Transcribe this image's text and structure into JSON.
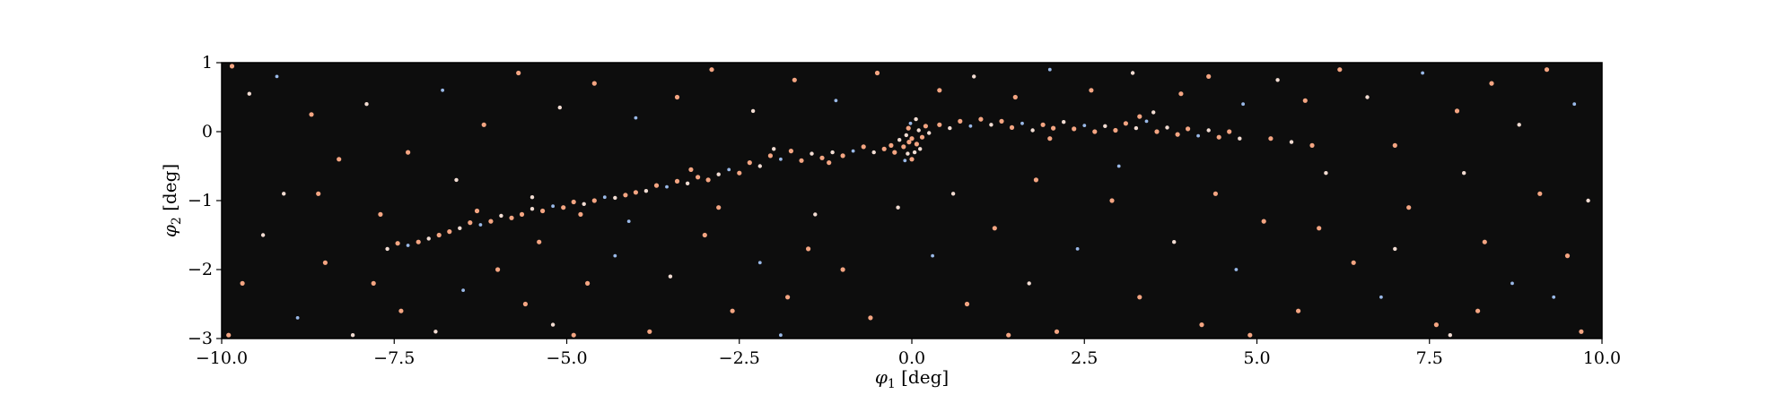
{
  "chart_data": {
    "type": "scatter",
    "title": "",
    "xlabel": "φ1 [deg]",
    "ylabel": "φ2 [deg]",
    "xlim": [
      -10,
      10
    ],
    "ylim": [
      -3,
      1
    ],
    "xticks": [
      -10.0,
      -7.5,
      -5.0,
      -2.5,
      0.0,
      2.5,
      5.0,
      7.5,
      10.0
    ],
    "xtick_labels": [
      "−10.0",
      "−7.5",
      "−5.0",
      "−2.5",
      "0.0",
      "2.5",
      "5.0",
      "7.5",
      "10.0"
    ],
    "yticks": [
      1,
      0,
      -1,
      -2,
      -3
    ],
    "ytick_labels": [
      "1",
      "0",
      "−1",
      "−2",
      "−3"
    ],
    "grid": false,
    "legend": false,
    "colors": {
      "background": "#0d0d0d",
      "warm": "#f4a582",
      "pale": "#f2dcd2",
      "cool": "#9ab9e8"
    },
    "stream_track": [
      {
        "phi1": -7.0,
        "phi2": -1.45
      },
      {
        "phi1": -6.0,
        "phi2": -1.25
      },
      {
        "phi1": -5.0,
        "phi2": -1.05
      },
      {
        "phi1": -4.0,
        "phi2": -0.85
      },
      {
        "phi1": -3.0,
        "phi2": -0.65
      },
      {
        "phi1": -2.0,
        "phi2": -0.4
      },
      {
        "phi1": -1.0,
        "phi2": -0.3
      },
      {
        "phi1": 0.0,
        "phi2": -0.05
      },
      {
        "phi1": 1.0,
        "phi2": 0.1
      },
      {
        "phi1": 2.0,
        "phi2": 0.08
      },
      {
        "phi1": 3.0,
        "phi2": 0.05
      },
      {
        "phi1": 4.0,
        "phi2": 0.02
      },
      {
        "phi1": 5.0,
        "phi2": -0.05
      },
      {
        "phi1": 5.8,
        "phi2": -0.15
      }
    ],
    "progenitor": {
      "phi1": 0.0,
      "phi2": -0.1
    },
    "points": [
      {
        "phi1": 0.0,
        "phi2": -0.1,
        "c": "warm"
      },
      {
        "phi1": -0.08,
        "phi2": -0.05,
        "c": "pale"
      },
      {
        "phi1": 0.07,
        "phi2": -0.18,
        "c": "warm"
      },
      {
        "phi1": -0.05,
        "phi2": 0.05,
        "c": "warm"
      },
      {
        "phi1": 0.1,
        "phi2": 0.02,
        "c": "pale"
      },
      {
        "phi1": -0.12,
        "phi2": -0.22,
        "c": "warm"
      },
      {
        "phi1": 0.04,
        "phi2": -0.3,
        "c": "pale"
      },
      {
        "phi1": -0.02,
        "phi2": 0.12,
        "c": "cool"
      },
      {
        "phi1": 0.15,
        "phi2": -0.08,
        "c": "warm"
      },
      {
        "phi1": -0.18,
        "phi2": -0.12,
        "c": "pale"
      },
      {
        "phi1": 0.0,
        "phi2": -0.4,
        "c": "warm"
      },
      {
        "phi1": -0.06,
        "phi2": -0.32,
        "c": "pale"
      },
      {
        "phi1": 0.2,
        "phi2": 0.08,
        "c": "warm"
      },
      {
        "phi1": -0.25,
        "phi2": -0.3,
        "c": "warm"
      },
      {
        "phi1": 0.06,
        "phi2": 0.18,
        "c": "pale"
      },
      {
        "phi1": -0.1,
        "phi2": -0.42,
        "c": "cool"
      },
      {
        "phi1": 0.12,
        "phi2": -0.25,
        "c": "pale"
      },
      {
        "phi1": -0.3,
        "phi2": -0.2,
        "c": "warm"
      },
      {
        "phi1": 0.25,
        "phi2": -0.02,
        "c": "pale"
      },
      {
        "phi1": -0.04,
        "phi2": -0.15,
        "c": "warm"
      },
      {
        "phi1": -0.4,
        "phi2": -0.25,
        "c": "warm"
      },
      {
        "phi1": -0.55,
        "phi2": -0.3,
        "c": "pale"
      },
      {
        "phi1": -0.7,
        "phi2": -0.22,
        "c": "warm"
      },
      {
        "phi1": -0.85,
        "phi2": -0.28,
        "c": "cool"
      },
      {
        "phi1": -1.0,
        "phi2": -0.35,
        "c": "warm"
      },
      {
        "phi1": -1.15,
        "phi2": -0.3,
        "c": "pale"
      },
      {
        "phi1": -1.3,
        "phi2": -0.38,
        "c": "warm"
      },
      {
        "phi1": -1.45,
        "phi2": -0.32,
        "c": "pale"
      },
      {
        "phi1": -1.6,
        "phi2": -0.42,
        "c": "warm"
      },
      {
        "phi1": -1.75,
        "phi2": -0.28,
        "c": "warm"
      },
      {
        "phi1": -1.9,
        "phi2": -0.4,
        "c": "cool"
      },
      {
        "phi1": -2.05,
        "phi2": -0.35,
        "c": "warm"
      },
      {
        "phi1": -2.2,
        "phi2": -0.5,
        "c": "pale"
      },
      {
        "phi1": -2.35,
        "phi2": -0.45,
        "c": "warm"
      },
      {
        "phi1": -2.5,
        "phi2": -0.6,
        "c": "warm"
      },
      {
        "phi1": -2.65,
        "phi2": -0.55,
        "c": "cool"
      },
      {
        "phi1": -2.8,
        "phi2": -0.62,
        "c": "pale"
      },
      {
        "phi1": -2.95,
        "phi2": -0.7,
        "c": "warm"
      },
      {
        "phi1": -3.1,
        "phi2": -0.66,
        "c": "warm"
      },
      {
        "phi1": -3.25,
        "phi2": -0.75,
        "c": "pale"
      },
      {
        "phi1": -3.4,
        "phi2": -0.72,
        "c": "warm"
      },
      {
        "phi1": -3.55,
        "phi2": -0.8,
        "c": "cool"
      },
      {
        "phi1": -3.7,
        "phi2": -0.78,
        "c": "warm"
      },
      {
        "phi1": -3.85,
        "phi2": -0.86,
        "c": "pale"
      },
      {
        "phi1": -4.0,
        "phi2": -0.88,
        "c": "warm"
      },
      {
        "phi1": -4.15,
        "phi2": -0.92,
        "c": "warm"
      },
      {
        "phi1": -4.3,
        "phi2": -0.96,
        "c": "pale"
      },
      {
        "phi1": -4.45,
        "phi2": -0.95,
        "c": "cool"
      },
      {
        "phi1": -4.6,
        "phi2": -1.0,
        "c": "warm"
      },
      {
        "phi1": -4.75,
        "phi2": -1.05,
        "c": "pale"
      },
      {
        "phi1": -4.9,
        "phi2": -1.02,
        "c": "warm"
      },
      {
        "phi1": -5.05,
        "phi2": -1.1,
        "c": "warm"
      },
      {
        "phi1": -5.2,
        "phi2": -1.08,
        "c": "cool"
      },
      {
        "phi1": -5.35,
        "phi2": -1.15,
        "c": "warm"
      },
      {
        "phi1": -5.5,
        "phi2": -1.12,
        "c": "pale"
      },
      {
        "phi1": -5.65,
        "phi2": -1.2,
        "c": "warm"
      },
      {
        "phi1": -5.8,
        "phi2": -1.25,
        "c": "warm"
      },
      {
        "phi1": -5.95,
        "phi2": -1.22,
        "c": "pale"
      },
      {
        "phi1": -6.1,
        "phi2": -1.3,
        "c": "warm"
      },
      {
        "phi1": -6.25,
        "phi2": -1.35,
        "c": "cool"
      },
      {
        "phi1": -6.4,
        "phi2": -1.32,
        "c": "warm"
      },
      {
        "phi1": -6.55,
        "phi2": -1.4,
        "c": "pale"
      },
      {
        "phi1": -6.7,
        "phi2": -1.45,
        "c": "warm"
      },
      {
        "phi1": -6.85,
        "phi2": -1.5,
        "c": "warm"
      },
      {
        "phi1": -7.0,
        "phi2": -1.55,
        "c": "pale"
      },
      {
        "phi1": -7.15,
        "phi2": -1.6,
        "c": "warm"
      },
      {
        "phi1": -7.3,
        "phi2": -1.65,
        "c": "cool"
      },
      {
        "phi1": -7.45,
        "phi2": -1.62,
        "c": "warm"
      },
      {
        "phi1": -7.6,
        "phi2": -1.7,
        "c": "pale"
      },
      {
        "phi1": -6.3,
        "phi2": -1.15,
        "c": "warm"
      },
      {
        "phi1": -5.5,
        "phi2": -0.95,
        "c": "pale"
      },
      {
        "phi1": -4.8,
        "phi2": -1.2,
        "c": "warm"
      },
      {
        "phi1": -3.2,
        "phi2": -0.55,
        "c": "warm"
      },
      {
        "phi1": -2.0,
        "phi2": -0.25,
        "c": "pale"
      },
      {
        "phi1": -1.2,
        "phi2": -0.45,
        "c": "warm"
      },
      {
        "phi1": 0.4,
        "phi2": 0.1,
        "c": "warm"
      },
      {
        "phi1": 0.55,
        "phi2": 0.05,
        "c": "pale"
      },
      {
        "phi1": 0.7,
        "phi2": 0.15,
        "c": "warm"
      },
      {
        "phi1": 0.85,
        "phi2": 0.08,
        "c": "cool"
      },
      {
        "phi1": 1.0,
        "phi2": 0.18,
        "c": "warm"
      },
      {
        "phi1": 1.15,
        "phi2": 0.1,
        "c": "pale"
      },
      {
        "phi1": 1.3,
        "phi2": 0.15,
        "c": "warm"
      },
      {
        "phi1": 1.45,
        "phi2": 0.06,
        "c": "warm"
      },
      {
        "phi1": 1.6,
        "phi2": 0.12,
        "c": "cool"
      },
      {
        "phi1": 1.75,
        "phi2": 0.02,
        "c": "pale"
      },
      {
        "phi1": 1.9,
        "phi2": 0.1,
        "c": "warm"
      },
      {
        "phi1": 2.05,
        "phi2": 0.05,
        "c": "warm"
      },
      {
        "phi1": 2.2,
        "phi2": 0.14,
        "c": "pale"
      },
      {
        "phi1": 2.35,
        "phi2": 0.04,
        "c": "warm"
      },
      {
        "phi1": 2.5,
        "phi2": 0.09,
        "c": "cool"
      },
      {
        "phi1": 2.65,
        "phi2": 0.0,
        "c": "warm"
      },
      {
        "phi1": 2.8,
        "phi2": 0.08,
        "c": "pale"
      },
      {
        "phi1": 2.95,
        "phi2": 0.02,
        "c": "warm"
      },
      {
        "phi1": 3.1,
        "phi2": 0.12,
        "c": "warm"
      },
      {
        "phi1": 3.25,
        "phi2": 0.05,
        "c": "pale"
      },
      {
        "phi1": 3.4,
        "phi2": 0.15,
        "c": "cool"
      },
      {
        "phi1": 3.55,
        "phi2": 0.0,
        "c": "warm"
      },
      {
        "phi1": 3.7,
        "phi2": 0.06,
        "c": "pale"
      },
      {
        "phi1": 3.85,
        "phi2": -0.04,
        "c": "warm"
      },
      {
        "phi1": 4.0,
        "phi2": 0.04,
        "c": "warm"
      },
      {
        "phi1": 4.15,
        "phi2": -0.06,
        "c": "cool"
      },
      {
        "phi1": 4.3,
        "phi2": 0.02,
        "c": "pale"
      },
      {
        "phi1": 4.45,
        "phi2": -0.08,
        "c": "warm"
      },
      {
        "phi1": 4.6,
        "phi2": 0.0,
        "c": "warm"
      },
      {
        "phi1": 4.75,
        "phi2": -0.1,
        "c": "pale"
      },
      {
        "phi1": 3.3,
        "phi2": 0.22,
        "c": "warm"
      },
      {
        "phi1": 3.5,
        "phi2": 0.28,
        "c": "pale"
      },
      {
        "phi1": 2.0,
        "phi2": -0.1,
        "c": "warm"
      },
      {
        "phi1": 5.2,
        "phi2": -0.1,
        "c": "warm"
      },
      {
        "phi1": 5.5,
        "phi2": -0.15,
        "c": "pale"
      },
      {
        "phi1": 5.8,
        "phi2": -0.2,
        "c": "warm"
      },
      {
        "phi1": -9.85,
        "phi2": 0.95,
        "c": "warm"
      },
      {
        "phi1": -9.6,
        "phi2": 0.55,
        "c": "pale"
      },
      {
        "phi1": -9.2,
        "phi2": 0.8,
        "c": "cool"
      },
      {
        "phi1": -8.7,
        "phi2": 0.25,
        "c": "warm"
      },
      {
        "phi1": -8.3,
        "phi2": -0.4,
        "c": "warm"
      },
      {
        "phi1": -9.4,
        "phi2": -1.5,
        "c": "pale"
      },
      {
        "phi1": -9.7,
        "phi2": -2.2,
        "c": "warm"
      },
      {
        "phi1": -8.9,
        "phi2": -2.7,
        "c": "cool"
      },
      {
        "phi1": -8.5,
        "phi2": -1.9,
        "c": "warm"
      },
      {
        "phi1": -9.1,
        "phi2": -0.9,
        "c": "pale"
      },
      {
        "phi1": -7.8,
        "phi2": -2.2,
        "c": "warm"
      },
      {
        "phi1": -7.4,
        "phi2": -2.6,
        "c": "warm"
      },
      {
        "phi1": -6.9,
        "phi2": -2.9,
        "c": "pale"
      },
      {
        "phi1": -6.5,
        "phi2": -2.3,
        "c": "cool"
      },
      {
        "phi1": -6.0,
        "phi2": -2.0,
        "c": "warm"
      },
      {
        "phi1": -5.6,
        "phi2": -2.5,
        "c": "warm"
      },
      {
        "phi1": -5.2,
        "phi2": -2.8,
        "c": "pale"
      },
      {
        "phi1": -4.7,
        "phi2": -2.2,
        "c": "warm"
      },
      {
        "phi1": -4.3,
        "phi2": -1.8,
        "c": "cool"
      },
      {
        "phi1": -3.8,
        "phi2": -2.9,
        "c": "warm"
      },
      {
        "phi1": -3.5,
        "phi2": -2.1,
        "c": "pale"
      },
      {
        "phi1": -3.0,
        "phi2": -1.5,
        "c": "warm"
      },
      {
        "phi1": -2.6,
        "phi2": -2.6,
        "c": "warm"
      },
      {
        "phi1": -2.2,
        "phi2": -1.9,
        "c": "cool"
      },
      {
        "phi1": -1.8,
        "phi2": -2.4,
        "c": "warm"
      },
      {
        "phi1": -1.4,
        "phi2": -1.2,
        "c": "pale"
      },
      {
        "phi1": -1.0,
        "phi2": -2.0,
        "c": "warm"
      },
      {
        "phi1": -0.6,
        "phi2": -2.7,
        "c": "warm"
      },
      {
        "phi1": -0.2,
        "phi2": -1.1,
        "c": "pale"
      },
      {
        "phi1": 0.3,
        "phi2": -1.8,
        "c": "cool"
      },
      {
        "phi1": 0.8,
        "phi2": -2.5,
        "c": "warm"
      },
      {
        "phi1": 1.2,
        "phi2": -1.4,
        "c": "warm"
      },
      {
        "phi1": 1.7,
        "phi2": -2.2,
        "c": "pale"
      },
      {
        "phi1": 2.1,
        "phi2": -2.9,
        "c": "warm"
      },
      {
        "phi1": 2.4,
        "phi2": -1.7,
        "c": "cool"
      },
      {
        "phi1": 2.9,
        "phi2": -1.0,
        "c": "warm"
      },
      {
        "phi1": 3.3,
        "phi2": -2.4,
        "c": "warm"
      },
      {
        "phi1": 3.8,
        "phi2": -1.6,
        "c": "pale"
      },
      {
        "phi1": 4.2,
        "phi2": -2.8,
        "c": "warm"
      },
      {
        "phi1": 4.7,
        "phi2": -2.0,
        "c": "cool"
      },
      {
        "phi1": 5.1,
        "phi2": -1.3,
        "c": "warm"
      },
      {
        "phi1": 5.6,
        "phi2": -2.6,
        "c": "warm"
      },
      {
        "phi1": 6.0,
        "phi2": -0.6,
        "c": "pale"
      },
      {
        "phi1": 6.4,
        "phi2": -1.9,
        "c": "warm"
      },
      {
        "phi1": 6.8,
        "phi2": -2.4,
        "c": "cool"
      },
      {
        "phi1": 7.2,
        "phi2": -1.1,
        "c": "warm"
      },
      {
        "phi1": 7.6,
        "phi2": -2.8,
        "c": "warm"
      },
      {
        "phi1": 8.0,
        "phi2": -0.6,
        "c": "pale"
      },
      {
        "phi1": 8.3,
        "phi2": -1.6,
        "c": "warm"
      },
      {
        "phi1": 8.7,
        "phi2": -2.2,
        "c": "cool"
      },
      {
        "phi1": 9.1,
        "phi2": -0.9,
        "c": "warm"
      },
      {
        "phi1": 9.5,
        "phi2": -1.8,
        "c": "warm"
      },
      {
        "phi1": 9.8,
        "phi2": -1.0,
        "c": "pale"
      },
      {
        "phi1": 9.6,
        "phi2": 0.4,
        "c": "cool"
      },
      {
        "phi1": 9.2,
        "phi2": 0.9,
        "c": "warm"
      },
      {
        "phi1": 8.8,
        "phi2": 0.1,
        "c": "pale"
      },
      {
        "phi1": 8.4,
        "phi2": 0.7,
        "c": "warm"
      },
      {
        "phi1": 7.9,
        "phi2": 0.3,
        "c": "warm"
      },
      {
        "phi1": 7.4,
        "phi2": 0.85,
        "c": "cool"
      },
      {
        "phi1": 7.0,
        "phi2": -0.2,
        "c": "warm"
      },
      {
        "phi1": 6.6,
        "phi2": 0.5,
        "c": "pale"
      },
      {
        "phi1": 6.2,
        "phi2": 0.9,
        "c": "warm"
      },
      {
        "phi1": 5.7,
        "phi2": 0.45,
        "c": "warm"
      },
      {
        "phi1": 5.3,
        "phi2": 0.75,
        "c": "pale"
      },
      {
        "phi1": 4.8,
        "phi2": 0.4,
        "c": "cool"
      },
      {
        "phi1": 4.3,
        "phi2": 0.8,
        "c": "warm"
      },
      {
        "phi1": 3.9,
        "phi2": 0.55,
        "c": "warm"
      },
      {
        "phi1": 3.2,
        "phi2": 0.85,
        "c": "pale"
      },
      {
        "phi1": 2.6,
        "phi2": 0.6,
        "c": "warm"
      },
      {
        "phi1": 2.0,
        "phi2": 0.9,
        "c": "cool"
      },
      {
        "phi1": 1.5,
        "phi2": 0.5,
        "c": "warm"
      },
      {
        "phi1": 0.9,
        "phi2": 0.8,
        "c": "pale"
      },
      {
        "phi1": 0.4,
        "phi2": 0.6,
        "c": "warm"
      },
      {
        "phi1": -0.5,
        "phi2": 0.85,
        "c": "warm"
      },
      {
        "phi1": -1.1,
        "phi2": 0.45,
        "c": "cool"
      },
      {
        "phi1": -1.7,
        "phi2": 0.75,
        "c": "warm"
      },
      {
        "phi1": -2.3,
        "phi2": 0.3,
        "c": "pale"
      },
      {
        "phi1": -2.9,
        "phi2": 0.9,
        "c": "warm"
      },
      {
        "phi1": -3.4,
        "phi2": 0.5,
        "c": "warm"
      },
      {
        "phi1": -4.0,
        "phi2": 0.2,
        "c": "cool"
      },
      {
        "phi1": -4.6,
        "phi2": 0.7,
        "c": "warm"
      },
      {
        "phi1": -5.1,
        "phi2": 0.35,
        "c": "pale"
      },
      {
        "phi1": -5.7,
        "phi2": 0.85,
        "c": "warm"
      },
      {
        "phi1": -6.2,
        "phi2": 0.1,
        "c": "warm"
      },
      {
        "phi1": -6.8,
        "phi2": 0.6,
        "c": "cool"
      },
      {
        "phi1": -7.3,
        "phi2": -0.3,
        "c": "warm"
      },
      {
        "phi1": -7.9,
        "phi2": 0.4,
        "c": "pale"
      },
      {
        "phi1": -8.6,
        "phi2": -0.9,
        "c": "warm"
      },
      {
        "phi1": -7.7,
        "phi2": -1.2,
        "c": "warm"
      },
      {
        "phi1": -6.6,
        "phi2": -0.7,
        "c": "pale"
      },
      {
        "phi1": -5.4,
        "phi2": -1.6,
        "c": "warm"
      },
      {
        "phi1": -4.1,
        "phi2": -1.3,
        "c": "cool"
      },
      {
        "phi1": -2.8,
        "phi2": -1.1,
        "c": "warm"
      },
      {
        "phi1": -1.5,
        "phi2": -1.7,
        "c": "warm"
      },
      {
        "phi1": 0.6,
        "phi2": -0.9,
        "c": "pale"
      },
      {
        "phi1": 1.8,
        "phi2": -0.7,
        "c": "warm"
      },
      {
        "phi1": 3.0,
        "phi2": -0.5,
        "c": "cool"
      },
      {
        "phi1": 4.4,
        "phi2": -0.9,
        "c": "warm"
      },
      {
        "phi1": 5.9,
        "phi2": -1.4,
        "c": "warm"
      },
      {
        "phi1": 7.0,
        "phi2": -1.7,
        "c": "pale"
      },
      {
        "phi1": 8.2,
        "phi2": -2.6,
        "c": "warm"
      },
      {
        "phi1": 9.3,
        "phi2": -2.4,
        "c": "cool"
      },
      {
        "phi1": 9.7,
        "phi2": -2.9,
        "c": "warm"
      },
      {
        "phi1": -9.9,
        "phi2": -2.95,
        "c": "warm"
      },
      {
        "phi1": -8.1,
        "phi2": -2.95,
        "c": "pale"
      },
      {
        "phi1": -4.9,
        "phi2": -2.95,
        "c": "warm"
      },
      {
        "phi1": -1.9,
        "phi2": -2.95,
        "c": "cool"
      },
      {
        "phi1": 1.4,
        "phi2": -2.95,
        "c": "warm"
      },
      {
        "phi1": 4.9,
        "phi2": -2.95,
        "c": "warm"
      },
      {
        "phi1": 7.8,
        "phi2": -2.95,
        "c": "pale"
      }
    ]
  }
}
